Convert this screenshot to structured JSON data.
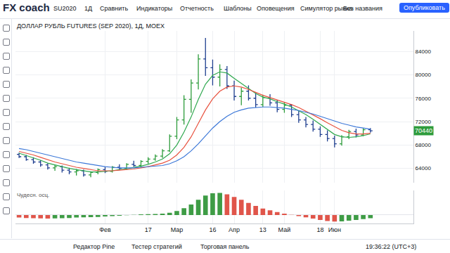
{
  "app": {
    "logo": "FX coach",
    "symbol": "SU2020",
    "toolbar": [
      "1Д",
      "Сравнить",
      "Индикаторы",
      "Отчетность",
      "Шаблоны",
      "Оповещения",
      "Симулятор рынка"
    ],
    "layout_name": "Без названия",
    "publish": "Опубликовать",
    "bottom_tabs": [
      "Редактор Pine",
      "Тестер стратегий",
      "Торговая панель"
    ],
    "clock": "19:36:22 (UTC+3)"
  },
  "chart_data": [
    {
      "type": "ohlc",
      "title": "ДОЛЛАР РУБЛЬ FUTURES (SEP 2020), 1Д, MOEX",
      "categories": [
        null,
        null,
        null,
        null,
        null,
        null,
        null,
        null,
        null,
        null,
        null,
        null,
        "Фев",
        null,
        null,
        null,
        null,
        null,
        "17",
        null,
        null,
        null,
        "Мар",
        null,
        null,
        null,
        null,
        "16",
        null,
        null,
        "Апр",
        null,
        null,
        null,
        "13",
        null,
        null,
        "Май",
        null,
        null,
        null,
        null,
        "18",
        null,
        "Июн",
        null,
        null,
        null,
        null,
        null
      ],
      "open": [
        66400,
        66000,
        65500,
        65100,
        64600,
        64100,
        64300,
        63700,
        63400,
        63600,
        62900,
        63300,
        63800,
        63500,
        64200,
        64000,
        64700,
        64500,
        65200,
        65600,
        66100,
        67000,
        69500,
        72300,
        75800,
        78600,
        82700,
        81200,
        79600,
        80900,
        78100,
        76300,
        77200,
        76000,
        74900,
        76100,
        75200,
        74100,
        74800,
        73200,
        72300,
        71500,
        70700,
        69800,
        69100,
        68200,
        69400,
        70300,
        69700,
        70600
      ],
      "high": [
        66700,
        66300,
        65900,
        65400,
        64900,
        64600,
        64500,
        64100,
        63900,
        63800,
        63500,
        64000,
        64300,
        64400,
        64700,
        64900,
        65300,
        65400,
        65900,
        66400,
        67300,
        69800,
        72800,
        76500,
        79200,
        83500,
        86300,
        82600,
        81800,
        81500,
        79000,
        77800,
        78200,
        76900,
        76600,
        76700,
        75700,
        75300,
        75000,
        73900,
        72800,
        72200,
        71200,
        70500,
        69600,
        69700,
        70600,
        70800,
        70900,
        70900
      ],
      "low": [
        65800,
        65300,
        64800,
        64300,
        63800,
        63600,
        63300,
        63000,
        62800,
        62600,
        62500,
        63000,
        63200,
        63300,
        63700,
        63800,
        64300,
        64200,
        64800,
        65300,
        65800,
        66800,
        69000,
        71500,
        73500,
        77500,
        79800,
        78200,
        78000,
        77600,
        75600,
        74800,
        75600,
        74400,
        74500,
        74700,
        73600,
        73500,
        72800,
        71800,
        71000,
        70300,
        69400,
        68600,
        67600,
        67900,
        69000,
        69300,
        69500,
        70100
      ],
      "close": [
        66000,
        65500,
        65100,
        64600,
        64100,
        64300,
        63700,
        63400,
        63600,
        62900,
        63300,
        63800,
        63500,
        64200,
        64000,
        64700,
        64500,
        65200,
        65600,
        66100,
        67000,
        69500,
        72300,
        75800,
        78600,
        82700,
        81200,
        79600,
        80900,
        78100,
        76300,
        77200,
        76000,
        74900,
        76100,
        75200,
        74100,
        74800,
        73200,
        72300,
        71500,
        70700,
        69800,
        69100,
        68200,
        69400,
        70300,
        69700,
        70600,
        70440
      ],
      "colors": [
        "#2e9c3c",
        "#1f3f8f"
      ],
      "series": [
        {
          "type": "line",
          "color": "#2fa84f",
          "values": [
            66600,
            66200,
            65800,
            65400,
            64900,
            64600,
            64300,
            64000,
            63800,
            63600,
            63400,
            63400,
            63500,
            63600,
            63800,
            63900,
            64200,
            64400,
            64700,
            65100,
            65600,
            66500,
            68000,
            70200,
            72800,
            75800,
            78400,
            79900,
            80500,
            80300,
            79400,
            78500,
            77600,
            76800,
            76200,
            75900,
            75400,
            75000,
            74500,
            73900,
            73200,
            72400,
            71500,
            70700,
            69800,
            69400,
            69300,
            69400,
            69600,
            69900
          ]
        },
        {
          "type": "line",
          "color": "#e8523f",
          "values": [
            66900,
            66600,
            66300,
            65900,
            65500,
            65100,
            64800,
            64500,
            64200,
            64000,
            63800,
            63600,
            63600,
            63600,
            63700,
            63800,
            63900,
            64100,
            64300,
            64600,
            64900,
            65400,
            66300,
            67600,
            69400,
            71700,
            74000,
            75900,
            77200,
            77900,
            78100,
            77900,
            77500,
            77000,
            76500,
            76100,
            75700,
            75300,
            74900,
            74400,
            73800,
            73200,
            72500,
            71800,
            71100,
            70500,
            70100,
            69900,
            69900,
            70000
          ]
        },
        {
          "type": "line",
          "color": "#3c78d8",
          "values": [
            67400,
            67200,
            66900,
            66600,
            66300,
            66000,
            65700,
            65400,
            65100,
            64900,
            64700,
            64500,
            64300,
            64200,
            64100,
            64100,
            64100,
            64200,
            64300,
            64400,
            64500,
            64800,
            65300,
            66000,
            67000,
            68200,
            69600,
            70900,
            72000,
            72900,
            73600,
            74000,
            74300,
            74400,
            74500,
            74500,
            74400,
            74300,
            74100,
            73900,
            73600,
            73300,
            72900,
            72500,
            72100,
            71700,
            71400,
            71100,
            70900,
            70700
          ]
        }
      ],
      "xlim": [
        -0.5,
        55
      ],
      "ylim": [
        61500,
        87500
      ],
      "yticks": [
        64000,
        68000,
        72000,
        76000,
        80000,
        84000
      ],
      "grid": true,
      "tick_labels": "y",
      "annotations": [
        {
          "text": "70440",
          "y": 70440,
          "color": "#2e9c3c"
        }
      ]
    },
    {
      "type": "bar",
      "title": "Чудесн. осц.",
      "categories": [
        null,
        null,
        null,
        null,
        null,
        null,
        null,
        null,
        null,
        null,
        null,
        null,
        "Фев",
        null,
        null,
        null,
        null,
        null,
        "17",
        null,
        null,
        null,
        "Мар",
        null,
        null,
        null,
        null,
        "16",
        null,
        null,
        "Апр",
        null,
        null,
        null,
        "13",
        null,
        null,
        "Май",
        null,
        null,
        null,
        null,
        "18",
        null,
        "Июн",
        null,
        null,
        null,
        null,
        null
      ],
      "values": [
        -1200,
        -1400,
        -1500,
        -1600,
        -1700,
        -1600,
        -1500,
        -1400,
        -1200,
        -1100,
        -1000,
        -900,
        -700,
        -500,
        -300,
        -100,
        100,
        300,
        400,
        500,
        700,
        1100,
        1900,
        3200,
        5000,
        7200,
        9200,
        10300,
        10500,
        9800,
        8600,
        7200,
        5700,
        4300,
        3100,
        2200,
        1400,
        700,
        100,
        -500,
        -1100,
        -1700,
        -2300,
        -2800,
        -3100,
        -3000,
        -2700,
        -2300,
        -1900,
        -1500
      ],
      "colors": [
        "#e0554a",
        "#e0554a",
        "#e0554a",
        "#e0554a",
        "#e0554a",
        "#3e9c45",
        "#3e9c45",
        "#3e9c45",
        "#3e9c45",
        "#3e9c45",
        "#3e9c45",
        "#3e9c45",
        "#3e9c45",
        "#3e9c45",
        "#3e9c45",
        "#3e9c45",
        "#3e9c45",
        "#3e9c45",
        "#3e9c45",
        "#3e9c45",
        "#3e9c45",
        "#3e9c45",
        "#3e9c45",
        "#3e9c45",
        "#3e9c45",
        "#3e9c45",
        "#3e9c45",
        "#3e9c45",
        "#3e9c45",
        "#e0554a",
        "#e0554a",
        "#e0554a",
        "#e0554a",
        "#e0554a",
        "#e0554a",
        "#e0554a",
        "#e0554a",
        "#e0554a",
        "#e0554a",
        "#e0554a",
        "#e0554a",
        "#e0554a",
        "#e0554a",
        "#e0554a",
        "#e0554a",
        "#3e9c45",
        "#3e9c45",
        "#3e9c45",
        "#3e9c45",
        "#3e9c45"
      ],
      "ylim": [
        -4000,
        11500
      ],
      "yticks": [
        0
      ],
      "grid": true,
      "tick_labels": "x"
    }
  ]
}
